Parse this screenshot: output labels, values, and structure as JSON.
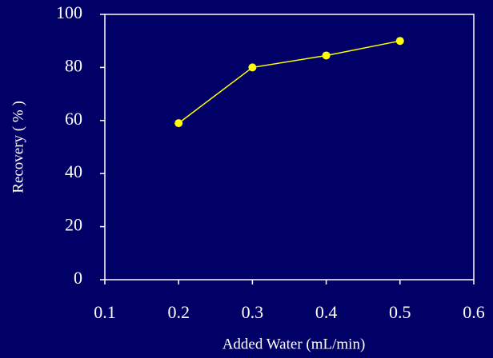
{
  "chart_data": {
    "type": "line",
    "x_label": "Added Water (mL/min)",
    "y_label": "Recovery ( % )",
    "x": [
      0.2,
      0.3,
      0.4,
      0.5
    ],
    "series": [
      {
        "name": "Recovery",
        "color": "#ffff00",
        "values": [
          59,
          80,
          84.5,
          90
        ]
      }
    ],
    "xlim": [
      0.1,
      0.6
    ],
    "xticks": [
      0.1,
      0.2,
      0.3,
      0.4,
      0.5,
      0.6
    ],
    "ylim": [
      0,
      100
    ],
    "yticks": [
      0,
      20,
      40,
      60,
      80,
      100
    ],
    "grid": false
  }
}
